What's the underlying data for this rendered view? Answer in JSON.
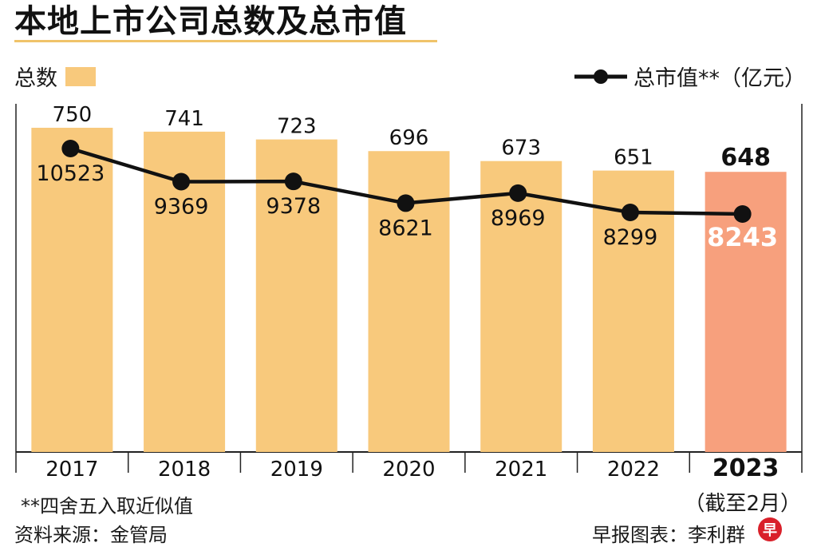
{
  "title": "本地上市公司总数及总市值",
  "legend": {
    "bars_label": "总数",
    "line_label": "总市值**（亿元）"
  },
  "chart_data": {
    "type": "bar",
    "categories": [
      "2017",
      "2018",
      "2019",
      "2020",
      "2021",
      "2022",
      "2023"
    ],
    "series": [
      {
        "name": "总数",
        "type": "bar",
        "values": [
          750,
          741,
          723,
          696,
          673,
          651,
          648
        ]
      },
      {
        "name": "总市值**（亿元）",
        "type": "line",
        "values": [
          10523,
          9369,
          9378,
          8621,
          8969,
          8299,
          8243
        ]
      }
    ],
    "highlight_category": "2023",
    "colors": {
      "bar": "#f8c97c",
      "bar_highlight": "#f7a07d",
      "line": "#111111",
      "axis": "#222222"
    },
    "grid": false
  },
  "note_2023": "（截至2月）",
  "footnote": "**四舍五入取近似值",
  "source": "资料来源：金管局",
  "credit": "早报图表：李利群",
  "logo_text": "早"
}
